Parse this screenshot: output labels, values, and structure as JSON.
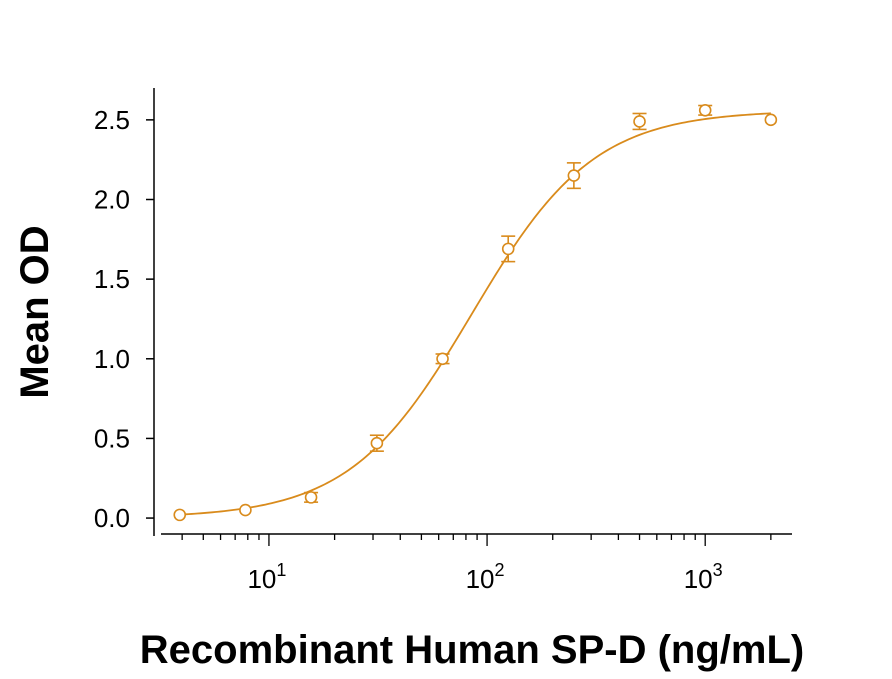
{
  "chart_data": {
    "type": "scatter",
    "xlabel": "Recombinant Human SP-D (ng/mL)",
    "ylabel": "Mean OD",
    "xscale": "log",
    "xlim": [
      3.2,
      2500
    ],
    "ylim": [
      -0.1,
      2.7
    ],
    "x_major_ticks": [
      10,
      100,
      1000
    ],
    "x_tick_labels": [
      {
        "base": "10",
        "exp": "1"
      },
      {
        "base": "10",
        "exp": "2"
      },
      {
        "base": "10",
        "exp": "3"
      }
    ],
    "y_ticks": [
      0.0,
      0.5,
      1.0,
      1.5,
      2.0,
      2.5
    ],
    "y_tick_labels": [
      "0.0",
      "0.5",
      "1.0",
      "1.5",
      "2.0",
      "2.5"
    ],
    "grid": false,
    "legend": "none",
    "color": "#D98B1C",
    "series": [
      {
        "x": [
          3.9,
          7.8,
          15.6,
          31.25,
          62.5,
          125,
          250,
          500,
          1000,
          2000
        ],
        "y": [
          0.02,
          0.05,
          0.13,
          0.47,
          1.0,
          1.69,
          2.15,
          2.49,
          2.56,
          2.5
        ],
        "err": [
          0.0,
          0.0,
          0.03,
          0.05,
          0.03,
          0.08,
          0.08,
          0.05,
          0.03,
          0.0
        ]
      }
    ],
    "fit": {
      "type": "4PL",
      "bottom": 0.0,
      "top": 2.56,
      "ec50": 85,
      "hill": 1.55
    }
  }
}
